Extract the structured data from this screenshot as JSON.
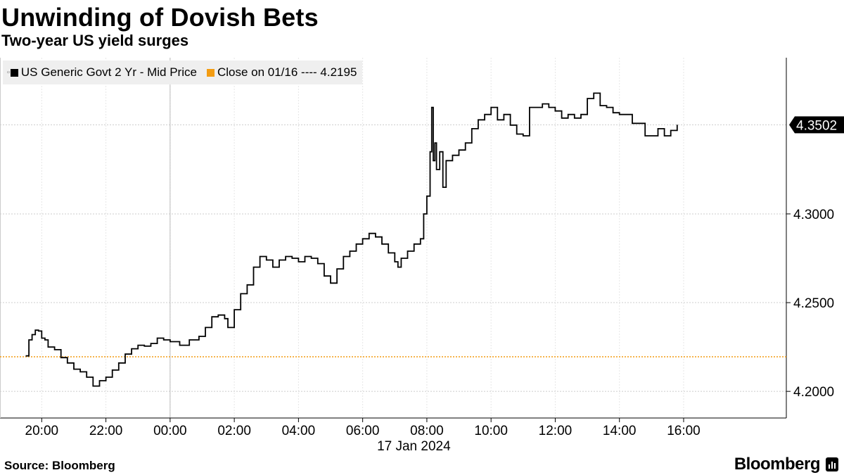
{
  "title": "Unwinding of Dovish Bets",
  "subtitle": "Two-year US yield surges",
  "source": "Source: Bloomberg",
  "brand": "Bloomberg",
  "colors": {
    "line": "#000000",
    "reference": "#f39c12",
    "grid": "#cccccc",
    "badge_bg": "#000000",
    "badge_text": "#ffffff",
    "legend_bg": "#efefef"
  },
  "chart_data": {
    "type": "line",
    "date_label": "17 Jan 2024",
    "x_tick_labels": [
      "20:00",
      "22:00",
      "00:00",
      "02:00",
      "04:00",
      "06:00",
      "08:00",
      "10:00",
      "12:00",
      "14:00",
      "16:00"
    ],
    "y_tick_labels": [
      "4.2000",
      "4.2500",
      "4.3000"
    ],
    "ylim": [
      4.185,
      4.388
    ],
    "xlim_hours": [
      -5.3,
      19.2
    ],
    "grid": true,
    "legend_position": "top-left",
    "last_value_label": "4.3502",
    "reference": {
      "name": "Close on 01/16 ---- 4.2195",
      "value": 4.2195
    },
    "series": [
      {
        "name": "US Generic Govt 2 Yr - Mid Price",
        "x_hours": [
          -4.5,
          -4.4,
          -4.3,
          -4.2,
          -4.1,
          -4.0,
          -3.9,
          -3.8,
          -3.6,
          -3.4,
          -3.2,
          -3.0,
          -2.8,
          -2.6,
          -2.4,
          -2.2,
          -2.0,
          -1.8,
          -1.6,
          -1.4,
          -1.2,
          -1.0,
          -0.8,
          -0.6,
          -0.4,
          -0.2,
          0.0,
          0.3,
          0.6,
          0.9,
          1.1,
          1.3,
          1.5,
          1.7,
          1.8,
          2.0,
          2.2,
          2.4,
          2.6,
          2.8,
          3.0,
          3.2,
          3.4,
          3.6,
          3.8,
          4.0,
          4.2,
          4.4,
          4.6,
          4.8,
          5.0,
          5.2,
          5.4,
          5.6,
          5.8,
          6.0,
          6.2,
          6.4,
          6.6,
          6.8,
          7.0,
          7.1,
          7.2,
          7.4,
          7.6,
          7.8,
          7.9,
          8.0,
          8.1,
          8.15,
          8.2,
          8.25,
          8.3,
          8.4,
          8.5,
          8.6,
          8.8,
          9.0,
          9.2,
          9.4,
          9.6,
          9.8,
          10.0,
          10.2,
          10.4,
          10.6,
          10.8,
          11.0,
          11.2,
          11.4,
          11.6,
          11.8,
          12.0,
          12.2,
          12.4,
          12.6,
          12.8,
          13.0,
          13.2,
          13.4,
          13.6,
          13.8,
          14.0,
          14.2,
          14.4,
          14.6,
          14.8,
          15.0,
          15.2,
          15.4,
          15.6,
          15.8
        ],
        "values": [
          4.22,
          4.229,
          4.232,
          4.2345,
          4.234,
          4.23,
          4.229,
          4.225,
          4.2235,
          4.219,
          4.216,
          4.2125,
          4.211,
          4.208,
          4.203,
          4.206,
          4.208,
          4.212,
          4.216,
          4.221,
          4.224,
          4.226,
          4.2255,
          4.227,
          4.23,
          4.229,
          4.228,
          4.226,
          4.229,
          4.231,
          4.236,
          4.242,
          4.243,
          4.241,
          4.236,
          4.246,
          4.255,
          4.26,
          4.27,
          4.276,
          4.274,
          4.27,
          4.274,
          4.276,
          4.275,
          4.273,
          4.276,
          4.275,
          4.272,
          4.265,
          4.261,
          4.269,
          4.276,
          4.279,
          4.283,
          4.286,
          4.289,
          4.287,
          4.283,
          4.278,
          4.273,
          4.27,
          4.275,
          4.279,
          4.283,
          4.286,
          4.3,
          4.31,
          4.335,
          4.36,
          4.33,
          4.34,
          4.325,
          4.335,
          4.315,
          4.33,
          4.333,
          4.336,
          4.34,
          4.348,
          4.353,
          4.356,
          4.36,
          4.353,
          4.356,
          4.35,
          4.345,
          4.344,
          4.36,
          4.36,
          4.362,
          4.36,
          4.358,
          4.354,
          4.356,
          4.354,
          4.356,
          4.365,
          4.368,
          4.361,
          4.36,
          4.357,
          4.356,
          4.356,
          4.351,
          4.351,
          4.344,
          4.344,
          4.348,
          4.344,
          4.347,
          4.3502
        ]
      }
    ]
  }
}
